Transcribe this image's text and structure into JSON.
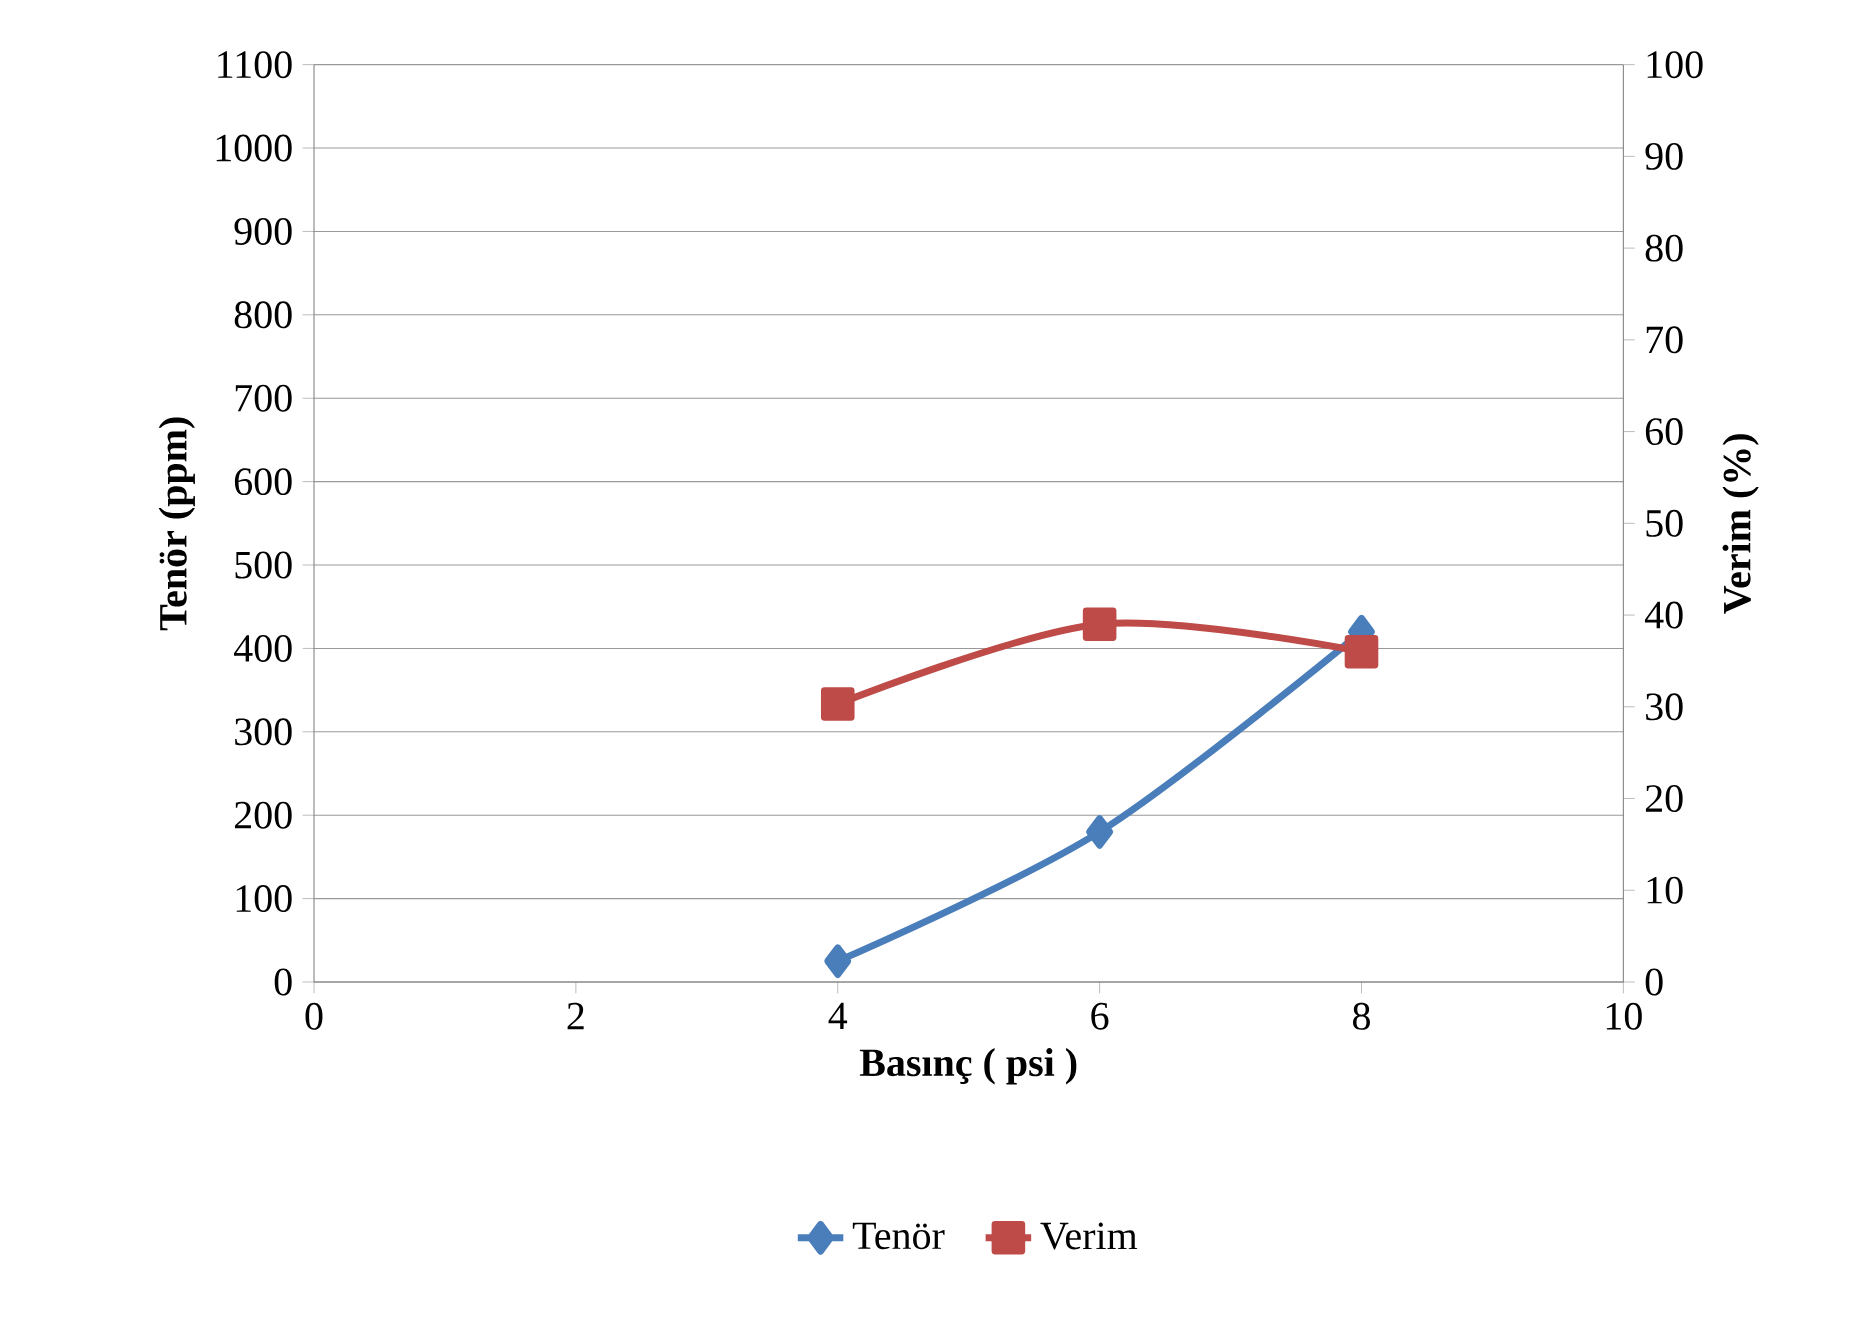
{
  "chart_data": {
    "type": "line",
    "xlabel": "Basınç ( psi )",
    "ylabel": "Tenör (ppm)",
    "y2label": "Verim (%)",
    "x": [
      4,
      6,
      8
    ],
    "series": [
      {
        "name": "Tenör",
        "color": "#4a7ebb",
        "marker": "diamond",
        "values": [
          25,
          180,
          420
        ]
      },
      {
        "name": "Verim",
        "color": "#be4b48",
        "marker": "square",
        "axis": "y2",
        "values": [
          30.3,
          39,
          36
        ]
      }
    ],
    "xlim": [
      0,
      10
    ],
    "xticks": [
      0,
      2,
      4,
      6,
      8,
      10
    ],
    "ylim": [
      0,
      1100
    ],
    "yticks": [
      0,
      100,
      200,
      300,
      400,
      500,
      600,
      700,
      800,
      900,
      1000,
      1100
    ],
    "y2lim": [
      0,
      100
    ],
    "y2ticks": [
      0,
      10,
      20,
      30,
      40,
      50,
      60,
      70,
      80,
      90,
      100
    ],
    "grid": "y",
    "legend": "bottom",
    "line_style": "solid"
  }
}
